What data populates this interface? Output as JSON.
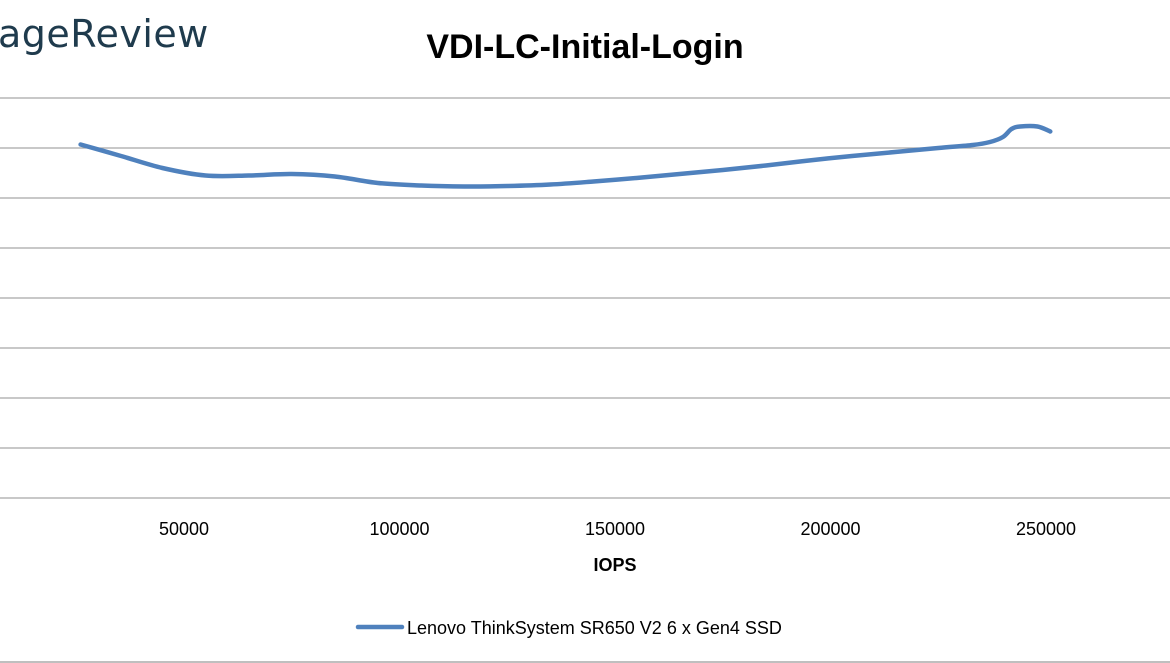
{
  "watermark": {
    "text": "ageReview"
  },
  "chart_data": {
    "type": "line",
    "title": "VDI-LC-Initial-Login",
    "xlabel": "IOPS",
    "ylabel": "",
    "xlim": [
      0,
      285000
    ],
    "x_ticks": [
      50000,
      100000,
      150000,
      200000,
      250000
    ],
    "x_tick_labels": [
      "50000",
      "100000",
      "150000",
      "200000",
      "250000"
    ],
    "ylim": [
      0,
      8
    ],
    "y_gridlines": [
      1,
      2,
      3,
      4,
      5,
      6,
      7,
      8
    ],
    "grid": true,
    "legend_position": "bottom",
    "series": [
      {
        "name": "Lenovo ThinkSystem SR650 V2 6 x Gen4 SSD",
        "color": "#4f81bd",
        "x": [
          26000,
          35000,
          45000,
          55000,
          65000,
          75000,
          85000,
          95000,
          105000,
          115000,
          125000,
          135000,
          145000,
          155000,
          165000,
          175000,
          185000,
          195000,
          205000,
          215000,
          225000,
          233000,
          237000,
          240000,
          242000,
          244000,
          248000,
          251000
        ],
        "y": [
          7.07,
          6.85,
          6.6,
          6.45,
          6.45,
          6.48,
          6.43,
          6.3,
          6.25,
          6.23,
          6.24,
          6.27,
          6.33,
          6.4,
          6.48,
          6.56,
          6.65,
          6.75,
          6.84,
          6.92,
          7.0,
          7.06,
          7.12,
          7.22,
          7.38,
          7.43,
          7.43,
          7.33
        ]
      }
    ]
  }
}
